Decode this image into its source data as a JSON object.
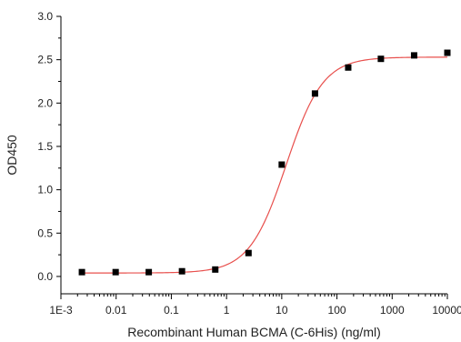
{
  "chart_data": {
    "type": "scatter",
    "title": "",
    "xlabel": "Recombinant Human BCMA (C-6His) (ng/ml)",
    "ylabel": "OD450",
    "xscale": "log",
    "xlim": [
      0.001,
      10000
    ],
    "ylim": [
      -0.2,
      3.0
    ],
    "x_ticks": [
      0.001,
      0.01,
      0.1,
      1,
      10,
      100,
      1000,
      10000
    ],
    "x_tick_labels": [
      "1E-3",
      "0.01",
      "0.1",
      "1",
      "10",
      "100",
      "1000",
      "10000"
    ],
    "y_ticks": [
      0.0,
      0.5,
      1.0,
      1.5,
      2.0,
      2.5,
      3.0
    ],
    "y_tick_labels": [
      "0.0",
      "0.5",
      "1.0",
      "1.5",
      "2.0",
      "2.5",
      "3.0"
    ],
    "series": [
      {
        "marker": "square",
        "color": "#000000",
        "x": [
          0.0024,
          0.0098,
          0.039,
          0.156,
          0.625,
          2.5,
          10,
          40,
          160,
          625,
          2500,
          10000
        ],
        "y": [
          0.05,
          0.05,
          0.05,
          0.06,
          0.08,
          0.27,
          1.29,
          2.11,
          2.41,
          2.51,
          2.55,
          2.58
        ]
      }
    ],
    "fit_curve": {
      "type": "4PL sigmoid",
      "color": "#e8504d",
      "bottom": 0.04,
      "top": 2.53,
      "ec50": 12,
      "hill": 1.3
    },
    "grid": false,
    "legend": "none"
  }
}
